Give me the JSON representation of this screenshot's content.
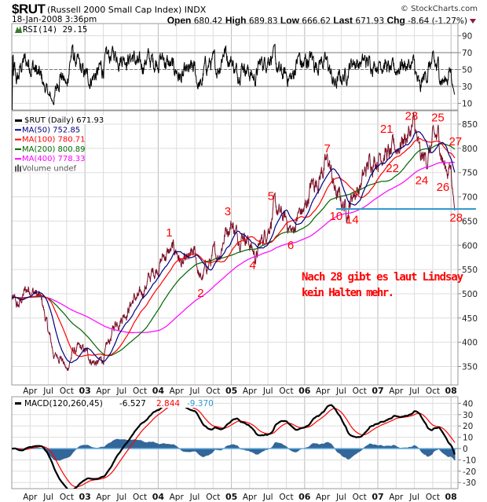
{
  "header": {
    "symbol": "$RUT",
    "name": "(Russell 2000 Small Cap Index)",
    "exchange": "INDX",
    "copyright": "© StockCharts.com",
    "datetime": "18-Jan-2008 3:36pm",
    "open_label": "Open",
    "open": "680.42",
    "high_label": "High",
    "high": "689.83",
    "low_label": "Low",
    "low": "666.62",
    "last_label": "Last",
    "last": "671.93",
    "chg_label": "Chg",
    "chg": "-8.64 (-1.27%)",
    "chg_icon": "down-triangle-icon"
  },
  "colors": {
    "price": "#7a1028",
    "ma50": "#000080",
    "ma100": "#ff0000",
    "ma200": "#006400",
    "ma400": "#ff00ff",
    "support": "#3399cc",
    "annotation": "#ff0000",
    "histogram": "#336699"
  },
  "chart_data": [
    {
      "type": "line",
      "panel": "rsi",
      "title": "RSI(14) 29.15",
      "indicator": "RSI(14)",
      "last": 29.15,
      "ylim": [
        0,
        100
      ],
      "y_ticks": [
        "90",
        "70",
        "50",
        "30",
        "10"
      ],
      "reference_lines": [
        70,
        50,
        30
      ]
    },
    {
      "type": "line",
      "panel": "price",
      "start": "2002-01",
      "frequency": "monthly",
      "ylim": [
        312,
        877
      ],
      "y_ticks": [
        "850",
        "800",
        "750",
        "700",
        "650",
        "600",
        "550",
        "500",
        "450",
        "400",
        "350"
      ],
      "monthly_close": [
        490,
        470,
        500,
        515,
        500,
        480,
        420,
        370,
        375,
        340,
        380,
        385,
        380,
        365,
        355,
        365,
        400,
        440,
        455,
        470,
        490,
        490,
        520,
        540,
        560,
        580,
        585,
        590,
        555,
        565,
        580,
        525,
        555,
        575,
        585,
        630,
        650,
        620,
        630,
        605,
        575,
        610,
        640,
        675,
        660,
        650,
        625,
        665,
        670,
        720,
        735,
        760,
        770,
        710,
        690,
        675,
        710,
        720,
        750,
        780,
        785,
        800,
        780,
        800,
        820,
        830,
        845,
        770,
        780,
        810,
        820,
        760,
        760
      ],
      "last_value": 671.93,
      "legend": [
        {
          "label": "$RUT (Daily) 671.93",
          "key": "price"
        },
        {
          "label": "MA(50) 752.85",
          "key": "ma50"
        },
        {
          "label": "MA(100) 780.71",
          "key": "ma100"
        },
        {
          "label": "MA(200) 800.89",
          "key": "ma200"
        },
        {
          "label": "MA(400) 778.33",
          "key": "ma400"
        },
        {
          "label": "Volume undef",
          "key": "volume"
        }
      ],
      "moving_averages": [
        50,
        100,
        200,
        400
      ],
      "support_line": {
        "value": 675,
        "from": 2006.43
      },
      "annotations": [
        {
          "label": "1",
          "t": 2004.15,
          "price": 628
        },
        {
          "label": "2",
          "t": 2004.58,
          "price": 503
        },
        {
          "label": "3",
          "t": 2004.95,
          "price": 672
        },
        {
          "label": "4",
          "t": 2005.29,
          "price": 561
        },
        {
          "label": "5",
          "t": 2005.54,
          "price": 703
        },
        {
          "label": "6",
          "t": 2005.81,
          "price": 602
        },
        {
          "label": "7",
          "t": 2006.31,
          "price": 801
        },
        {
          "label": "10",
          "t": 2006.43,
          "price": 662
        },
        {
          "label": "14",
          "t": 2006.65,
          "price": 655
        },
        {
          "label": "21",
          "t": 2007.12,
          "price": 842
        },
        {
          "label": "22",
          "t": 2007.2,
          "price": 761
        },
        {
          "label": "23",
          "t": 2007.46,
          "price": 869
        },
        {
          "label": "24",
          "t": 2007.6,
          "price": 736
        },
        {
          "label": "25",
          "t": 2007.82,
          "price": 865
        },
        {
          "label": "26",
          "t": 2007.89,
          "price": 722
        },
        {
          "label": "27",
          "t": 2008.06,
          "price": 816
        },
        {
          "label": "28",
          "t": 2008.07,
          "price": 659
        }
      ],
      "note": [
        "Nach 28 gibt es laut Lindsay",
        "kein Halten mehr."
      ]
    },
    {
      "type": "line",
      "panel": "macd",
      "title": "MACD(120,260,45)",
      "values": [
        "-6.527",
        "2.844",
        "-9.370"
      ],
      "ylim": [
        -35,
        45
      ],
      "y_ticks": [
        "40",
        "30",
        "20",
        "10",
        "0",
        "-10",
        "-20",
        "-30"
      ]
    }
  ],
  "x_ticks": [
    {
      "label": "Apr",
      "t": 2002.25
    },
    {
      "label": "Jul",
      "t": 2002.5
    },
    {
      "label": "Oct",
      "t": 2002.75
    },
    {
      "label": "03",
      "t": 2003,
      "year": true
    },
    {
      "label": "Apr",
      "t": 2003.25
    },
    {
      "label": "Jul",
      "t": 2003.5
    },
    {
      "label": "Oct",
      "t": 2003.75
    },
    {
      "label": "04",
      "t": 2004,
      "year": true
    },
    {
      "label": "Apr",
      "t": 2004.25
    },
    {
      "label": "Jul",
      "t": 2004.5
    },
    {
      "label": "Oct",
      "t": 2004.75
    },
    {
      "label": "05",
      "t": 2005,
      "year": true
    },
    {
      "label": "Apr",
      "t": 2005.25
    },
    {
      "label": "Jul",
      "t": 2005.5
    },
    {
      "label": "Oct",
      "t": 2005.75
    },
    {
      "label": "06",
      "t": 2006,
      "year": true
    },
    {
      "label": "Apr",
      "t": 2006.25
    },
    {
      "label": "Jul",
      "t": 2006.5
    },
    {
      "label": "Oct",
      "t": 2006.75
    },
    {
      "label": "07",
      "t": 2007,
      "year": true
    },
    {
      "label": "Apr",
      "t": 2007.25
    },
    {
      "label": "Jul",
      "t": 2007.5
    },
    {
      "label": "Oct",
      "t": 2007.75
    },
    {
      "label": "08",
      "t": 2008,
      "year": true
    }
  ]
}
